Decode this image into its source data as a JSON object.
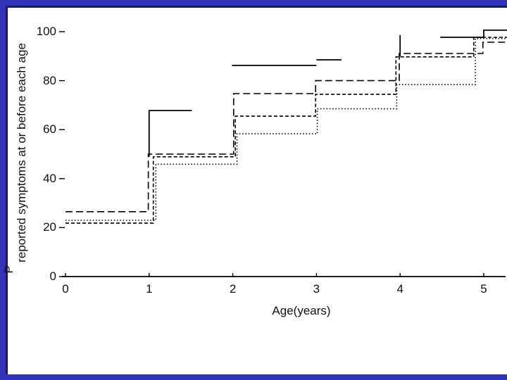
{
  "palette": {
    "slide_background": "#3335b8",
    "frame_line": "#1a1a6b",
    "panel_background": "#ffffff",
    "line_color": "#000000",
    "text_color": "#111111"
  },
  "chart_data": {
    "type": "line",
    "subtype": "step-survival-curves",
    "title": "",
    "xlabel": "Age(years)",
    "ylabel_line1": "P",
    "ylabel_line2": "reported symptoms at or before each age",
    "x_ticks": [
      0,
      1,
      2,
      3,
      4,
      5
    ],
    "y_ticks": [
      0,
      20,
      40,
      60,
      80,
      100
    ],
    "xlim": [
      0,
      5.28
    ],
    "ylim": [
      0,
      105
    ],
    "grid": false,
    "legend": "none",
    "series": [
      {
        "name": "solid-curve",
        "style": "solid",
        "plateaus_pct_at_or_before_age": {
          "1": 68,
          "2": 86,
          "3": 88.5,
          "4": 98.5,
          "5": 100.5
        },
        "segments": [
          [
            [
              1.0,
              48.9
            ],
            [
              1.0,
              67.8
            ],
            [
              1.51,
              67.8
            ]
          ],
          [
            [
              1.99,
              86.2
            ],
            [
              3.0,
              86.2
            ]
          ],
          [
            [
              3.0,
              88.5
            ],
            [
              3.3,
              88.5
            ]
          ],
          [
            [
              4.0,
              89.9
            ],
            [
              4.0,
              98.6
            ]
          ],
          [
            [
              4.48,
              97.7
            ],
            [
              5.0,
              97.7
            ],
            [
              5.0,
              100.6
            ],
            [
              5.28,
              100.6
            ]
          ]
        ]
      },
      {
        "name": "long-dash-curve",
        "style": "long-dash",
        "plateaus_pct_at_or_before_age": {
          "0": 26.5,
          "1": 50,
          "2": 75,
          "3": 80,
          "4": 91,
          "5": 96
        },
        "segments": [
          [
            [
              0,
              26.5
            ],
            [
              0.99,
              26.5
            ],
            [
              0.99,
              50
            ],
            [
              2.01,
              50
            ],
            [
              2.01,
              74.7
            ],
            [
              2.99,
              74.7
            ],
            [
              2.99,
              80
            ],
            [
              3.99,
              80
            ],
            [
              3.99,
              91.1
            ],
            [
              4.99,
              91.1
            ],
            [
              4.99,
              95.7
            ],
            [
              5.28,
              95.7
            ]
          ]
        ]
      },
      {
        "name": "short-dash-curve",
        "style": "short-dash",
        "plateaus_pct_at_or_before_age": {
          "0": 22,
          "1": 49,
          "2": 65.5,
          "3": 74.5,
          "4": 90,
          "5": 98
        },
        "segments": [
          [
            [
              0,
              21.8
            ],
            [
              1.05,
              21.8
            ],
            [
              1.05,
              48.9
            ],
            [
              2.03,
              48.9
            ],
            [
              2.03,
              65.5
            ],
            [
              2.99,
              65.5
            ],
            [
              2.99,
              74.4
            ],
            [
              3.95,
              74.4
            ],
            [
              3.95,
              89.7
            ],
            [
              4.88,
              89.7
            ],
            [
              4.88,
              97.7
            ],
            [
              5.28,
              97.7
            ]
          ]
        ]
      },
      {
        "name": "dotted-curve",
        "style": "dotted",
        "plateaus_pct_at_or_before_age": {
          "0": 23,
          "1": 46,
          "2": 58.5,
          "3": 68.5,
          "4": 78.5,
          "5": 97
        },
        "segments": [
          [
            [
              0,
              23.0
            ],
            [
              1.08,
              23.0
            ],
            [
              1.08,
              45.9
            ],
            [
              2.05,
              45.9
            ],
            [
              2.05,
              58.3
            ],
            [
              3.01,
              58.3
            ],
            [
              3.01,
              68.5
            ],
            [
              3.96,
              68.5
            ],
            [
              3.96,
              78.4
            ],
            [
              4.9,
              78.4
            ],
            [
              4.9,
              97.2
            ],
            [
              5.28,
              97.2
            ]
          ]
        ]
      }
    ]
  }
}
